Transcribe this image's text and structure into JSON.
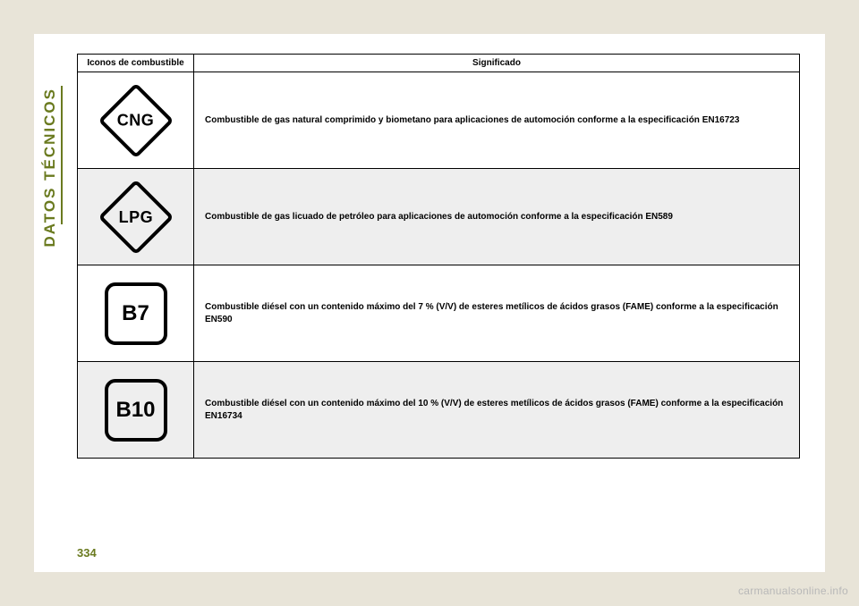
{
  "sideLabel": "DATOS TÉCNICOS",
  "pageNumber": "334",
  "footerCredit": "carmanualsonline.info",
  "table": {
    "headers": {
      "icon": "Iconos de combustible",
      "meaning": "Significado"
    },
    "rows": [
      {
        "iconShape": "diamond",
        "iconText": "CNG",
        "iconName": "cng-icon",
        "shaded": false,
        "desc": "Combustible de gas natural comprimido y biometano para aplicaciones de automoción conforme a la especificación EN16723"
      },
      {
        "iconShape": "diamond",
        "iconText": "LPG",
        "iconName": "lpg-icon",
        "shaded": true,
        "desc": "Combustible de gas licuado de petróleo para aplicaciones de automoción conforme a la especificación EN589"
      },
      {
        "iconShape": "rsquare",
        "iconText": "B7",
        "iconName": "b7-icon",
        "shaded": false,
        "desc": "Combustible diésel con un contenido máximo del 7 % (V/V) de esteres metílicos de ácidos grasos (FAME) conforme a la especificación EN590"
      },
      {
        "iconShape": "rsquare",
        "iconText": "B10",
        "iconName": "b10-icon",
        "shaded": true,
        "desc": "Combustible diésel con un contenido máximo del 10 % (V/V) de esteres metílicos de ácidos grasos (FAME) conforme a la especificación EN16734"
      }
    ]
  },
  "styling": {
    "page_bg": "#e8e4d8",
    "frame_bg": "#ffffff",
    "accent_color": "#6a7a1f",
    "border_color": "#000000",
    "shaded_row_bg": "#eeeeee",
    "footer_color": "#b8b8b8",
    "diamond_border_width": 4,
    "diamond_size": 60,
    "rsquare_size": 70,
    "rsquare_radius": 12,
    "glyph_font_weight": 900,
    "header_fontsize": 10,
    "desc_fontsize": 10,
    "sideLabel_fontsize": 17,
    "pageNumber_fontsize": 13
  }
}
